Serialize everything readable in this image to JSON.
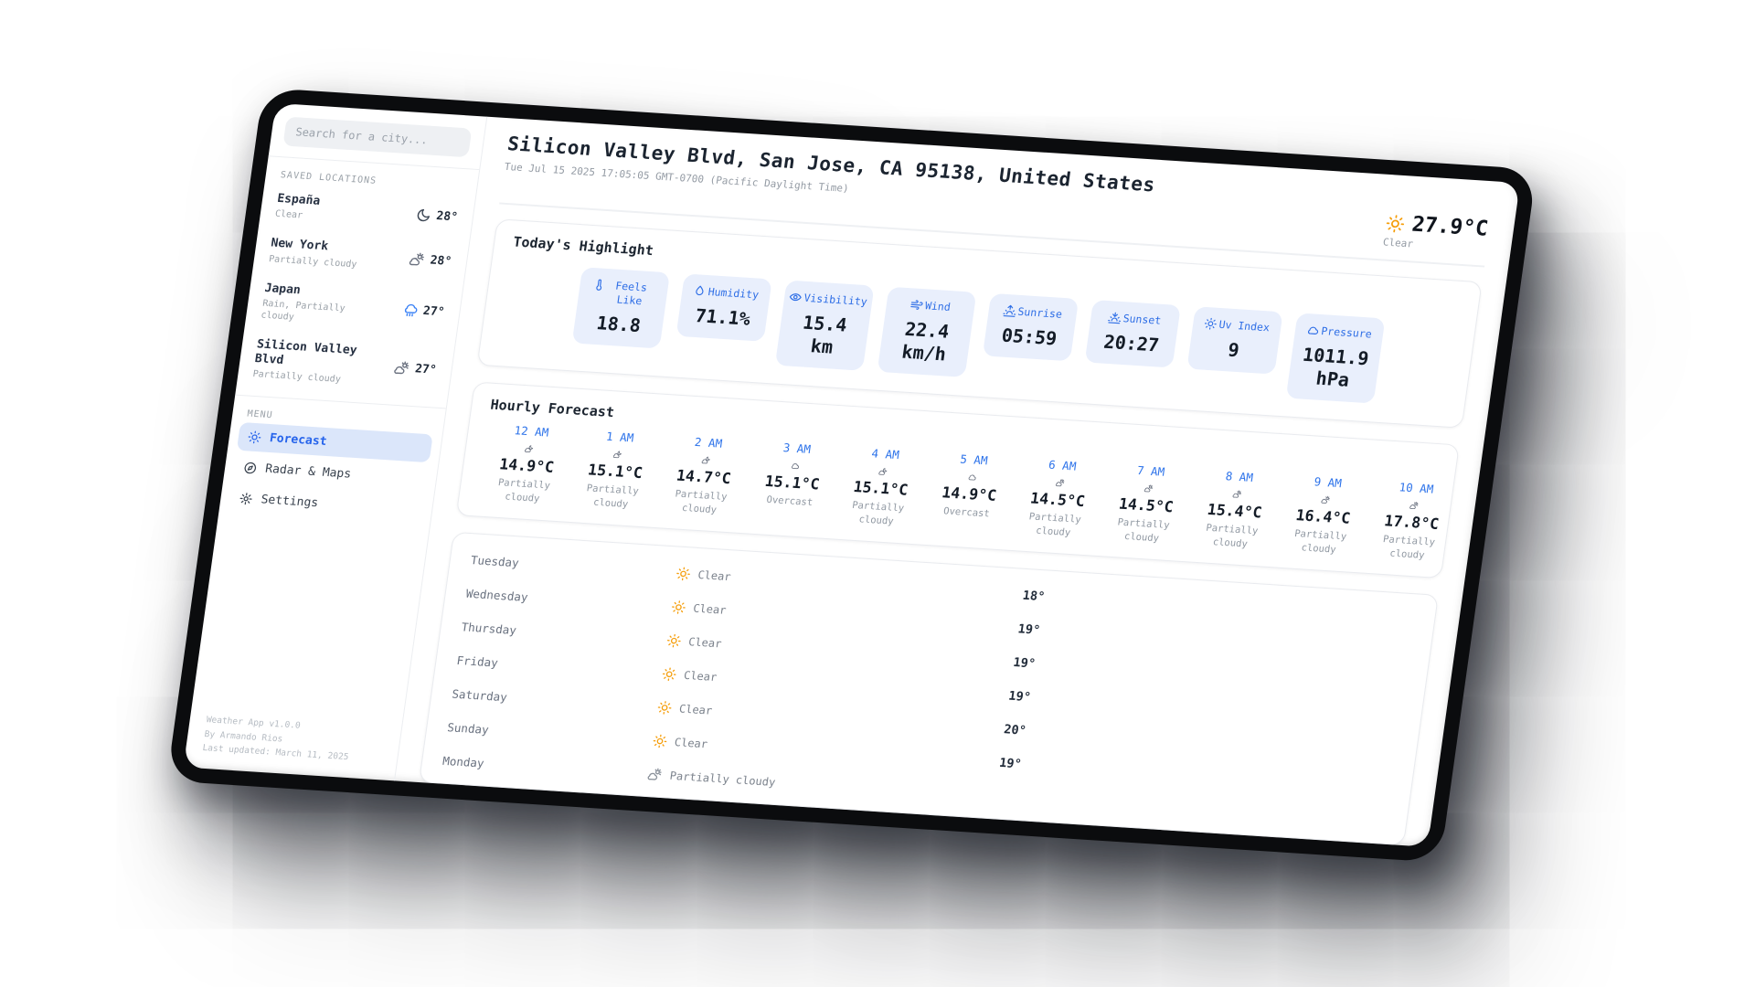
{
  "colors": {
    "accent": "#2563eb",
    "sun": "#f59e0b",
    "rain": "#3b82f6",
    "tile_bg": "#e9effc"
  },
  "sidebar": {
    "search_placeholder": "Search for a city...",
    "saved_locations_label": "SAVED LOCATIONS",
    "locations": [
      {
        "name": "España",
        "condition": "Clear",
        "icon": "moon",
        "temp": "28°"
      },
      {
        "name": "New York",
        "condition": "Partially cloudy",
        "icon": "cloud-sun",
        "temp": "28°"
      },
      {
        "name": "Japan",
        "condition": "Rain, Partially cloudy",
        "icon": "cloud-rain",
        "temp": "27°"
      },
      {
        "name": "Silicon Valley Blvd",
        "condition": "Partially cloudy",
        "icon": "cloud-sun",
        "temp": "27°"
      }
    ],
    "menu_label": "MENU",
    "menu": [
      {
        "label": "Forecast",
        "icon": "sun",
        "active": true
      },
      {
        "label": "Radar & Maps",
        "icon": "compass",
        "active": false
      },
      {
        "label": "Settings",
        "icon": "gear",
        "active": false
      }
    ],
    "footer_lines": [
      "Weather App v1.0.0",
      "By Armando Rios",
      "Last updated: March 11, 2025"
    ]
  },
  "header": {
    "location_title": "Silicon Valley Blvd, San Jose, CA 95138, United States",
    "datetime": "Tue Jul 15 2025 17:05:05 GMT-0700 (Pacific Daylight Time)",
    "current": {
      "icon": "sun",
      "temp": "27.9°C",
      "condition": "Clear"
    }
  },
  "highlights": {
    "title": "Today's Highlight",
    "cards": [
      {
        "label": "Feels Like",
        "icon": "thermometer",
        "value": "18.8"
      },
      {
        "label": "Humidity",
        "icon": "droplet",
        "value": "71.1%"
      },
      {
        "label": "Visibility",
        "icon": "eye",
        "value": "15.4 km"
      },
      {
        "label": "Wind",
        "icon": "wind",
        "value": "22.4 km/h"
      },
      {
        "label": "Sunrise",
        "icon": "sunrise",
        "value": "05:59"
      },
      {
        "label": "Sunset",
        "icon": "sunset",
        "value": "20:27"
      },
      {
        "label": "Uv Index",
        "icon": "sun",
        "value": "9"
      },
      {
        "label": "Pressure",
        "icon": "cloud",
        "value": "1011.9 hPa"
      }
    ]
  },
  "hourly": {
    "title": "Hourly Forecast",
    "items": [
      {
        "time": "12 AM",
        "icon": "cloud-moon",
        "temp": "14.9°C",
        "condition": "Partially cloudy"
      },
      {
        "time": "1 AM",
        "icon": "cloud-moon",
        "temp": "15.1°C",
        "condition": "Partially cloudy"
      },
      {
        "time": "2 AM",
        "icon": "cloud-moon",
        "temp": "14.7°C",
        "condition": "Partially cloudy"
      },
      {
        "time": "3 AM",
        "icon": "cloud",
        "temp": "15.1°C",
        "condition": "Overcast"
      },
      {
        "time": "4 AM",
        "icon": "cloud-moon",
        "temp": "15.1°C",
        "condition": "Partially cloudy"
      },
      {
        "time": "5 AM",
        "icon": "cloud",
        "temp": "14.9°C",
        "condition": "Overcast"
      },
      {
        "time": "6 AM",
        "icon": "cloud-sun",
        "temp": "14.5°C",
        "condition": "Partially cloudy"
      },
      {
        "time": "7 AM",
        "icon": "cloud-sun",
        "temp": "14.5°C",
        "condition": "Partially cloudy"
      },
      {
        "time": "8 AM",
        "icon": "cloud-sun",
        "temp": "15.4°C",
        "condition": "Partially cloudy"
      },
      {
        "time": "9 AM",
        "icon": "cloud-sun",
        "temp": "16.4°C",
        "condition": "Partially cloudy"
      },
      {
        "time": "10 AM",
        "icon": "cloud-sun",
        "temp": "17.8°C",
        "condition": "Partially cloudy"
      }
    ]
  },
  "daily": {
    "items": [
      {
        "day": "Tuesday",
        "icon": "sun",
        "condition": "Clear",
        "temp": "18°"
      },
      {
        "day": "Wednesday",
        "icon": "sun",
        "condition": "Clear",
        "temp": "19°"
      },
      {
        "day": "Thursday",
        "icon": "sun",
        "condition": "Clear",
        "temp": "19°"
      },
      {
        "day": "Friday",
        "icon": "sun",
        "condition": "Clear",
        "temp": "19°"
      },
      {
        "day": "Saturday",
        "icon": "sun",
        "condition": "Clear",
        "temp": "20°"
      },
      {
        "day": "Sunday",
        "icon": "sun",
        "condition": "Clear",
        "temp": "19°"
      },
      {
        "day": "Monday",
        "icon": "cloud-sun",
        "condition": "Partially cloudy",
        "temp": ""
      }
    ]
  }
}
